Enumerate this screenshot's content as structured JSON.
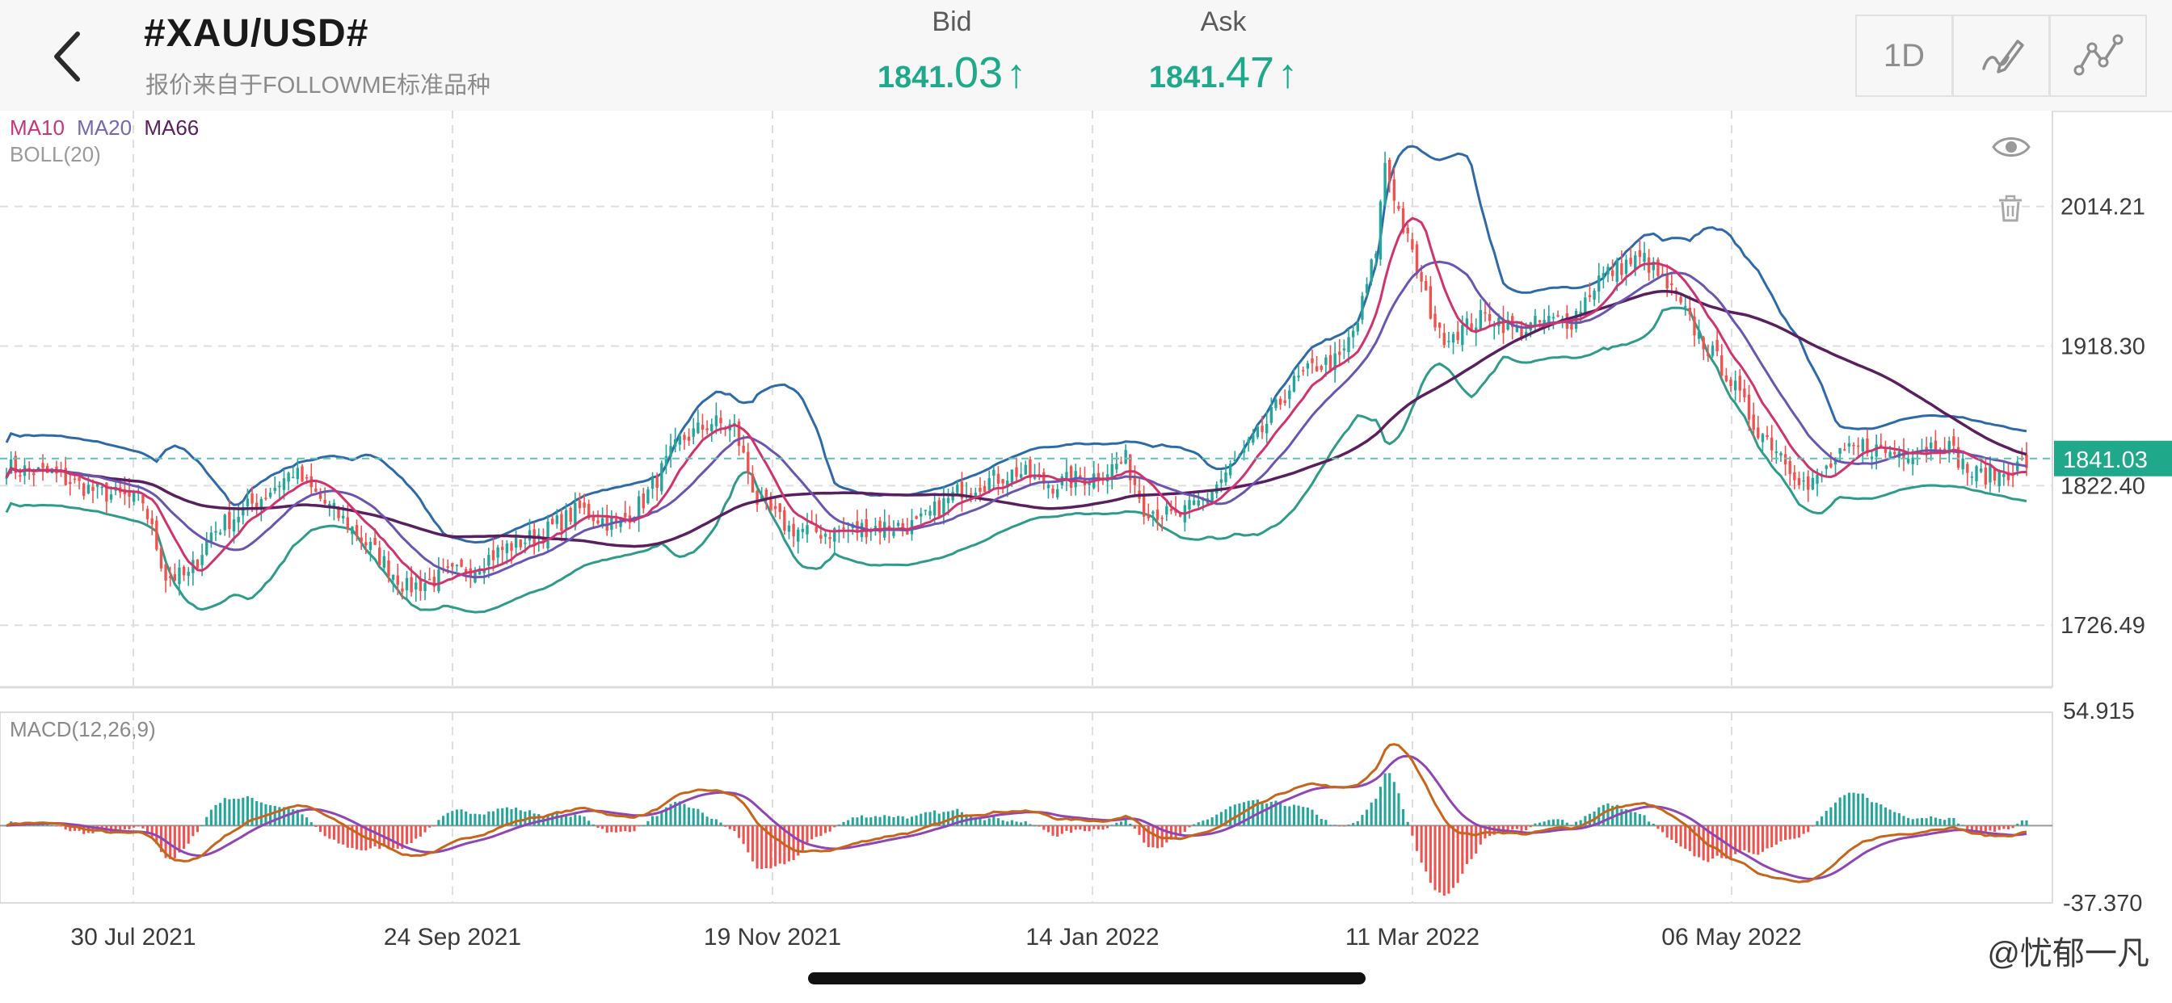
{
  "header": {
    "symbol": "#XAU/USD#",
    "source_note": "报价来自于FOLLOWME标准品种",
    "bid": {
      "label": "Bid",
      "big": "1841.",
      "small": "03",
      "arrow": "↑"
    },
    "ask": {
      "label": "Ask",
      "big": "1841.",
      "small": "47",
      "arrow": "↑"
    },
    "timeframe_label": "1D"
  },
  "legend": {
    "ma10": "MA10",
    "ma20": "MA20",
    "ma66": "MA66",
    "boll": "BOLL(20)",
    "macd": "MACD(12,26,9)"
  },
  "colors": {
    "up": "#26a69a",
    "down": "#ef5350",
    "ma10": "#d0346e",
    "ma20": "#6a55b0",
    "ma66": "#5a1f5e",
    "boll_upper": "#2e6aa8",
    "boll_lower": "#2f9b8b",
    "macd_line": "#c7661b",
    "signal_line": "#8f45b4",
    "accent": "#1fa98a"
  },
  "price_axis": {
    "labels": [
      "2014.21",
      "1918.30",
      "1822.40",
      "1726.49"
    ],
    "current_price": "1841.03"
  },
  "macd_axis": {
    "top": "54.915",
    "bottom": "-37.370"
  },
  "time_axis": {
    "labels": [
      "30 Jul 2021",
      "24 Sep 2021",
      "19 Nov 2021",
      "14 Jan 2022",
      "11 Mar 2022",
      "06 May 2022"
    ]
  },
  "watermark": "@忧郁一凡",
  "chart_data": {
    "type": "candlestick",
    "x_labels": [
      "30 Jul 2021",
      "24 Sep 2021",
      "19 Nov 2021",
      "14 Jan 2022",
      "11 Mar 2022",
      "06 May 2022"
    ],
    "price_range": [
      1685,
      2080
    ],
    "close_path": [
      [
        0,
        1835
      ],
      [
        10,
        1830
      ],
      [
        20,
        1818
      ],
      [
        30,
        1812
      ],
      [
        35,
        1760
      ],
      [
        40,
        1760
      ],
      [
        45,
        1790
      ],
      [
        55,
        1812
      ],
      [
        63,
        1832
      ],
      [
        70,
        1810
      ],
      [
        76,
        1793
      ],
      [
        82,
        1773
      ],
      [
        88,
        1752
      ],
      [
        94,
        1758
      ],
      [
        100,
        1763
      ],
      [
        110,
        1780
      ],
      [
        118,
        1790
      ],
      [
        126,
        1806
      ],
      [
        134,
        1795
      ],
      [
        140,
        1812
      ],
      [
        148,
        1853
      ],
      [
        155,
        1866
      ],
      [
        160,
        1862
      ],
      [
        165,
        1812
      ],
      [
        172,
        1793
      ],
      [
        180,
        1790
      ],
      [
        190,
        1794
      ],
      [
        200,
        1795
      ],
      [
        210,
        1820
      ],
      [
        222,
        1832
      ],
      [
        230,
        1823
      ],
      [
        240,
        1830
      ],
      [
        246,
        1840
      ],
      [
        250,
        1808
      ],
      [
        257,
        1800
      ],
      [
        263,
        1812
      ],
      [
        270,
        1838
      ],
      [
        276,
        1860
      ],
      [
        282,
        1890
      ],
      [
        288,
        1905
      ],
      [
        293,
        1908
      ],
      [
        297,
        1935
      ],
      [
        301,
        1985
      ],
      [
        303,
        2045
      ],
      [
        307,
        2000
      ],
      [
        311,
        1960
      ],
      [
        315,
        1925
      ],
      [
        320,
        1930
      ],
      [
        326,
        1940
      ],
      [
        332,
        1928
      ],
      [
        338,
        1935
      ],
      [
        344,
        1936
      ],
      [
        350,
        1965
      ],
      [
        356,
        1975
      ],
      [
        360,
        1978
      ],
      [
        366,
        1955
      ],
      [
        372,
        1925
      ],
      [
        378,
        1900
      ],
      [
        384,
        1865
      ],
      [
        390,
        1845
      ],
      [
        396,
        1820
      ],
      [
        402,
        1840
      ],
      [
        408,
        1850
      ],
      [
        414,
        1845
      ],
      [
        420,
        1848
      ],
      [
        426,
        1852
      ],
      [
        432,
        1830
      ],
      [
        438,
        1830
      ],
      [
        444,
        1838
      ]
    ],
    "bid": 1841.03,
    "ask": 1841.47,
    "macd_range": [
      -37.37,
      54.915
    ]
  }
}
